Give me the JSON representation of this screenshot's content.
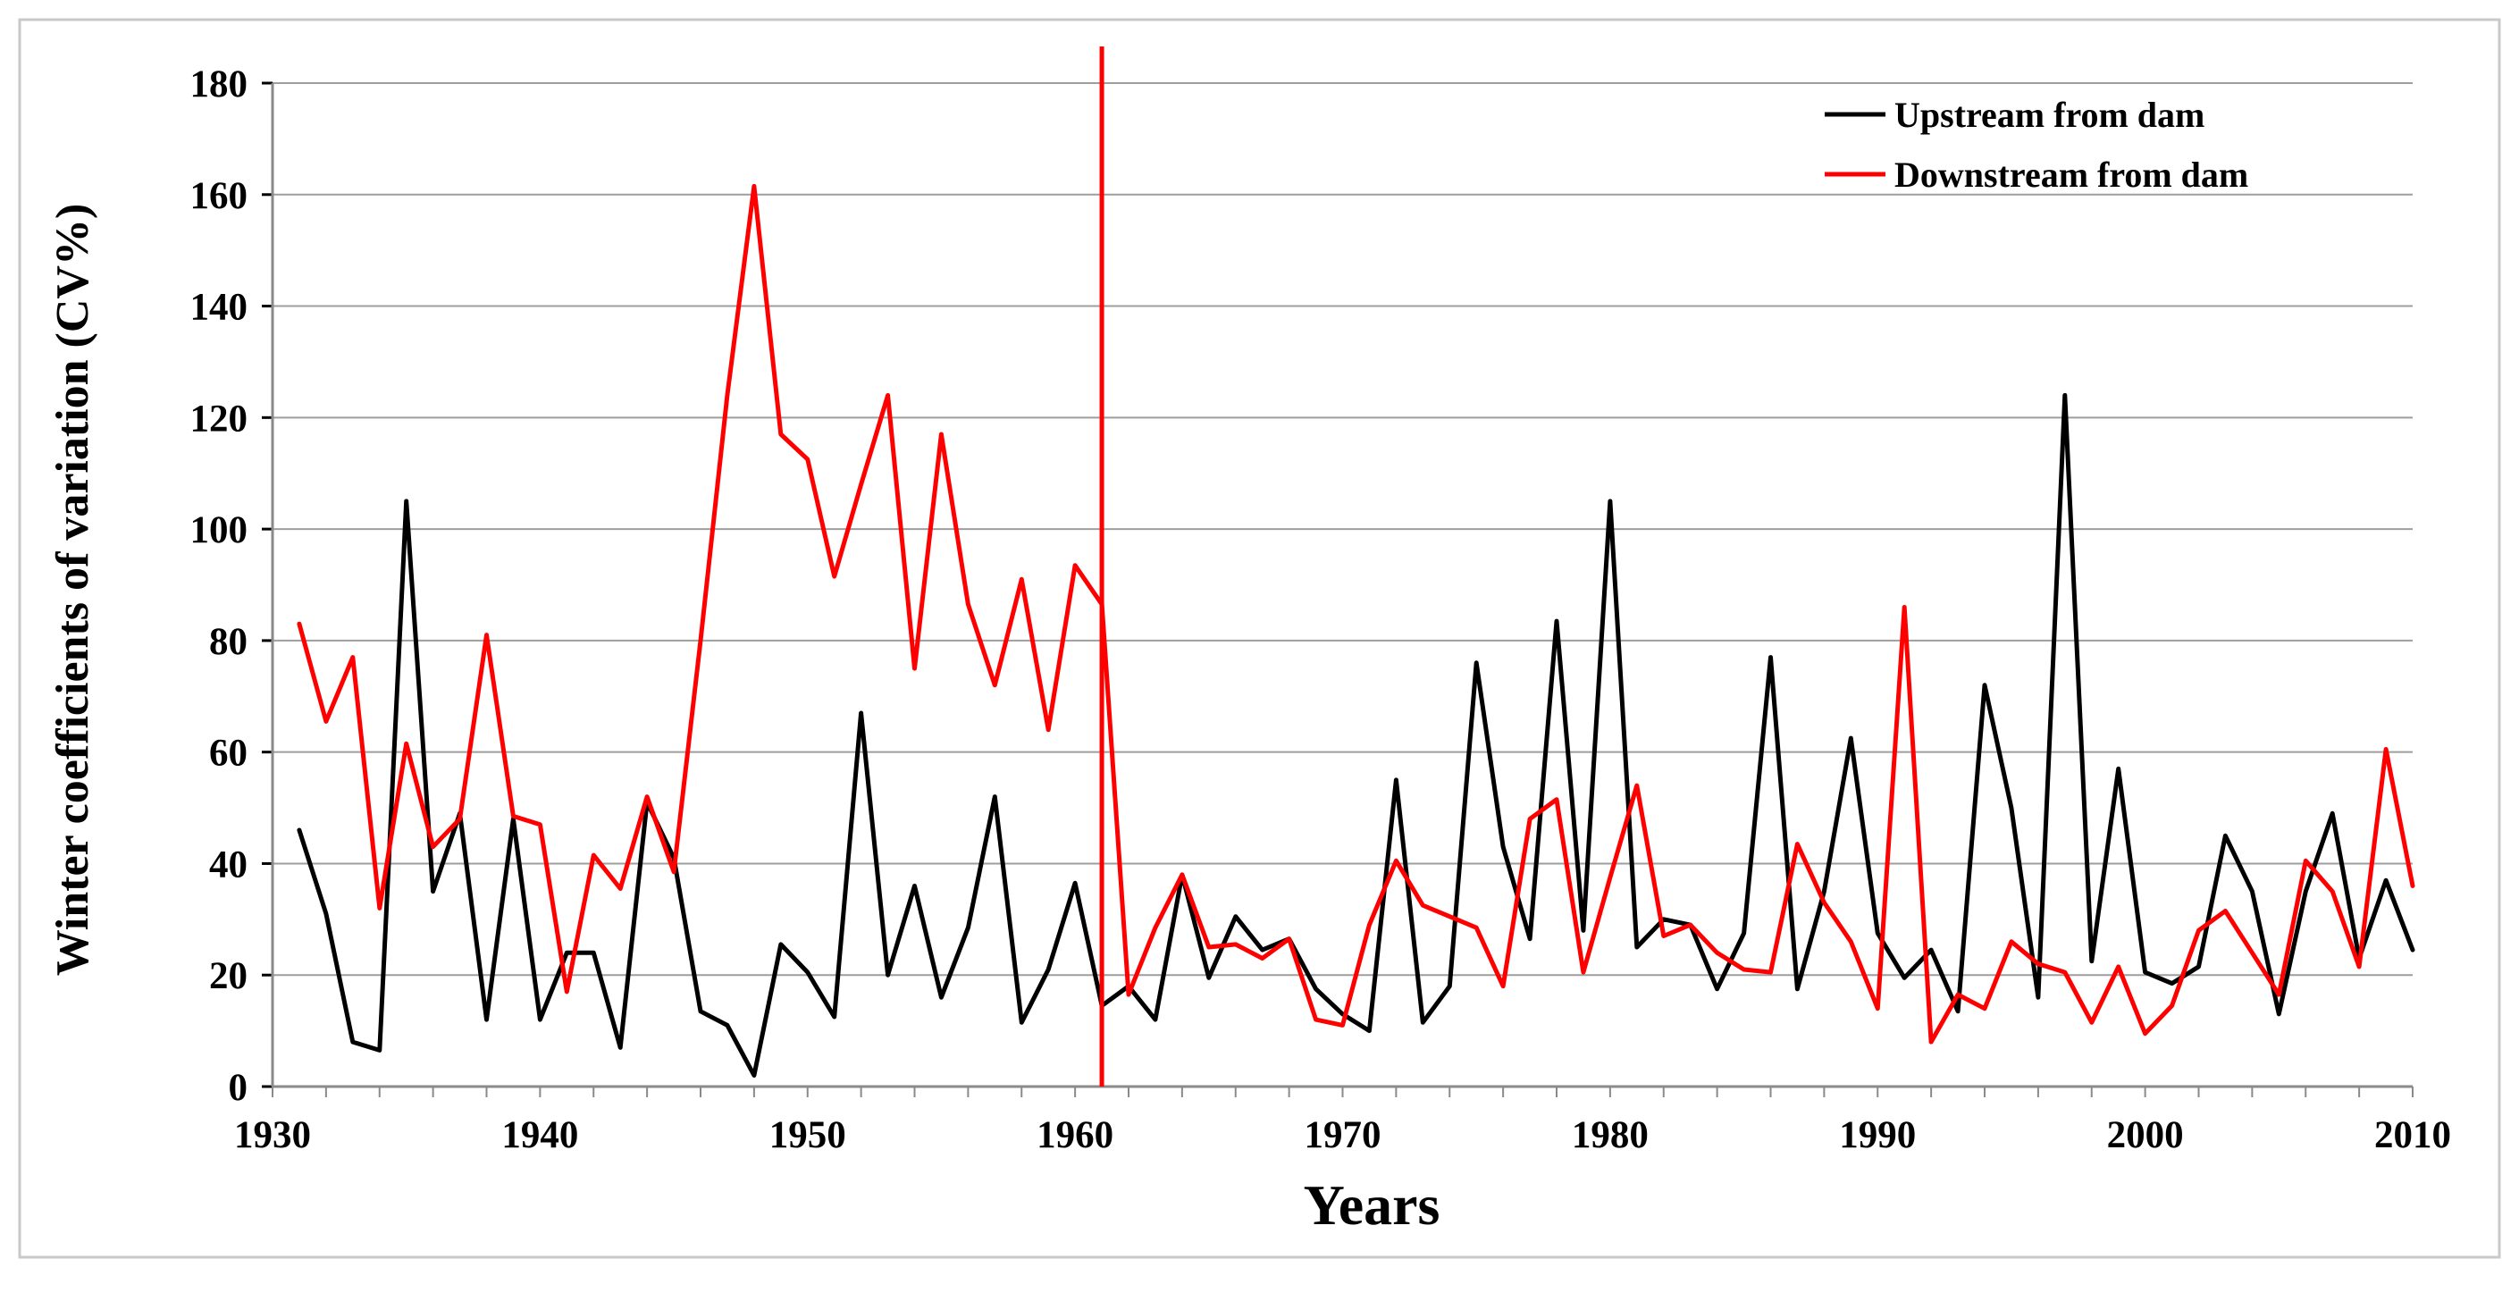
{
  "chart_data": {
    "type": "line",
    "title": "",
    "xlabel": "Years",
    "ylabel": "Winter coefficients of variation (CV%)",
    "xlim": [
      1930,
      2010
    ],
    "ylim": [
      0,
      180
    ],
    "x_ticks": [
      1930,
      1940,
      1950,
      1960,
      1970,
      1980,
      1990,
      2000,
      2010
    ],
    "y_ticks": [
      0,
      20,
      40,
      60,
      80,
      100,
      120,
      140,
      160,
      180
    ],
    "grid": "horizontal",
    "legend_position": "top-right",
    "vertical_marker": {
      "x": 1961,
      "color": "#ff0000"
    },
    "x": [
      1931,
      1932,
      1933,
      1934,
      1935,
      1936,
      1937,
      1938,
      1939,
      1940,
      1941,
      1942,
      1943,
      1944,
      1945,
      1946,
      1947,
      1948,
      1949,
      1950,
      1951,
      1952,
      1953,
      1954,
      1955,
      1956,
      1957,
      1958,
      1959,
      1960,
      1961,
      1962,
      1963,
      1964,
      1965,
      1966,
      1967,
      1968,
      1969,
      1970,
      1971,
      1972,
      1973,
      1974,
      1975,
      1976,
      1977,
      1978,
      1979,
      1980,
      1981,
      1982,
      1983,
      1984,
      1985,
      1986,
      1987,
      1988,
      1989,
      1990,
      1991,
      1992,
      1993,
      1994,
      1995,
      1996,
      1997,
      1998,
      1999,
      2000,
      2001,
      2002,
      2003,
      2004,
      2005,
      2006,
      2007,
      2008,
      2009,
      2010
    ],
    "series": [
      {
        "name": "Upstream from dam",
        "color": "#000000",
        "values": [
          46,
          31,
          8,
          6.5,
          105,
          35,
          49,
          12,
          48,
          12,
          24,
          24,
          7,
          51,
          41,
          13.5,
          11,
          2,
          25.5,
          20.5,
          12.5,
          67,
          20,
          36,
          16,
          28.5,
          52,
          11.5,
          21,
          36.5,
          14.5,
          18,
          12,
          38,
          19.5,
          30.5,
          24.5,
          26.5,
          17.5,
          13,
          10,
          55,
          11.5,
          18,
          76,
          43,
          26.5,
          83.5,
          28,
          105,
          25,
          30,
          29,
          17.5,
          27.5,
          77,
          17.5,
          35,
          62.5,
          27.5,
          19.5,
          24.5,
          13.5,
          72,
          50,
          16,
          124,
          22.5,
          57,
          20.5,
          18.5,
          21.5,
          45,
          35,
          13,
          35,
          49,
          23,
          37,
          24.5
        ]
      },
      {
        "name": "Downstream from dam",
        "color": "#ff0000",
        "values": [
          83,
          65.5,
          77,
          32,
          61.5,
          43,
          48,
          81,
          48.5,
          47,
          17,
          41.5,
          35.5,
          52,
          38.5,
          80,
          124,
          161.5,
          117,
          112.5,
          91.5,
          108,
          124,
          75,
          117,
          86.5,
          72,
          91,
          64,
          93.5,
          86.5,
          16.5,
          28.5,
          38,
          25,
          25.5,
          23,
          26.5,
          12,
          11,
          29,
          40.5,
          32.5,
          30.5,
          28.5,
          18,
          48,
          51.5,
          20.5,
          37.5,
          54,
          27,
          29,
          24,
          21,
          20.5,
          43.5,
          33,
          26,
          14,
          86,
          8,
          16.5,
          14,
          26,
          22,
          20.5,
          11.5,
          21.5,
          9.5,
          14.5,
          28,
          31.5,
          24,
          16.5,
          40.5,
          35,
          21.5,
          60.5,
          36
        ]
      }
    ]
  }
}
